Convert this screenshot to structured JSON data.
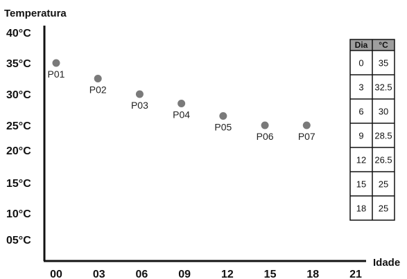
{
  "chart_data": {
    "type": "scatter",
    "title": "",
    "ylabel": "Temperatura",
    "xlabel": "Idade",
    "xlim": [
      0,
      21
    ],
    "ylim": [
      5,
      40
    ],
    "y_ticks": [
      {
        "label": "40°C",
        "value": 40
      },
      {
        "label": "35°C",
        "value": 35
      },
      {
        "label": "30°C",
        "value": 30
      },
      {
        "label": "25°C",
        "value": 25
      },
      {
        "label": "20°C",
        "value": 20
      },
      {
        "label": "15°C",
        "value": 15
      },
      {
        "label": "10°C",
        "value": 10
      },
      {
        "label": "05°C",
        "value": 5
      }
    ],
    "x_ticks": [
      {
        "label": "00",
        "value": 0
      },
      {
        "label": "03",
        "value": 3
      },
      {
        "label": "06",
        "value": 6
      },
      {
        "label": "09",
        "value": 9
      },
      {
        "label": "12",
        "value": 12
      },
      {
        "label": "15",
        "value": 15
      },
      {
        "label": "18",
        "value": 18
      },
      {
        "label": "21",
        "value": 21
      }
    ],
    "points": [
      {
        "label": "P01",
        "x": 0,
        "y": 35
      },
      {
        "label": "P02",
        "x": 3,
        "y": 32.5
      },
      {
        "label": "P03",
        "x": 6,
        "y": 30
      },
      {
        "label": "P04",
        "x": 9,
        "y": 28.5
      },
      {
        "label": "P05",
        "x": 12,
        "y": 26.5
      },
      {
        "label": "P06",
        "x": 15,
        "y": 25
      },
      {
        "label": "P07",
        "x": 18,
        "y": 25
      }
    ],
    "point_color": "#7a7a7a",
    "grid": false
  },
  "table": {
    "headers": [
      "Dia",
      "°C"
    ],
    "rows": [
      [
        "0",
        "35"
      ],
      [
        "3",
        "32.5"
      ],
      [
        "6",
        "30"
      ],
      [
        "9",
        "28.5"
      ],
      [
        "12",
        "26.5"
      ],
      [
        "15",
        "25"
      ],
      [
        "18",
        "25"
      ]
    ],
    "header_color": "#9e9e9e"
  }
}
